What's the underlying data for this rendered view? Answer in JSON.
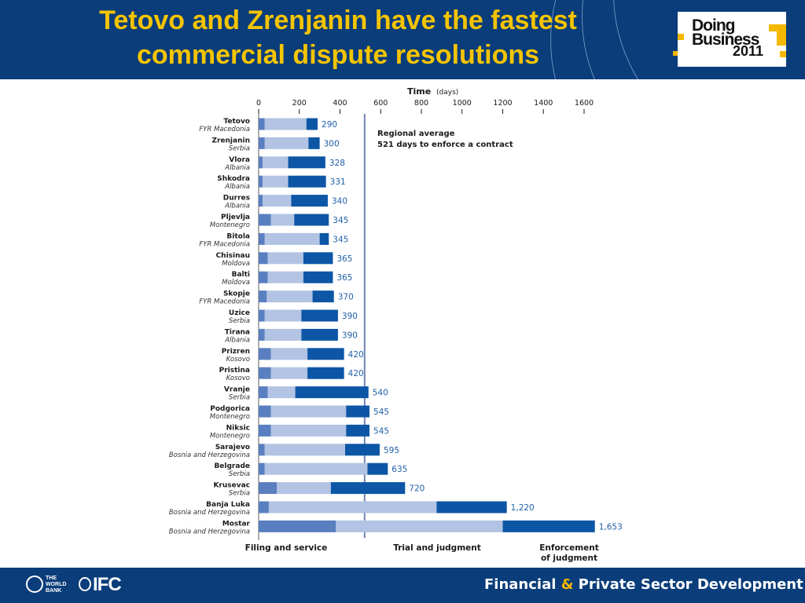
{
  "header": {
    "title_line1": "Tetovo and Zrenjanin have the fastest",
    "title_line2": "commercial dispute resolutions",
    "logo_line1": "Doing",
    "logo_line2": "Business",
    "logo_line3": "2011"
  },
  "footer": {
    "wb_line1": "THE",
    "wb_line2": "WORLD",
    "wb_line3": "BANK",
    "ifc": "IFC",
    "tagline_part1": "Financial",
    "tagline_amp": "&",
    "tagline_part2": "Private Sector Development"
  },
  "colors": {
    "header_bg": "#0a3d7a",
    "title": "#f5c400",
    "accent": "#f5b800",
    "filing": "#5a7fc0",
    "trial": "#b2c3e3",
    "enforcement": "#0d56a6",
    "value_label": "#1f5fa8"
  },
  "chart_data": {
    "type": "bar",
    "orientation": "horizontal",
    "stacked": true,
    "axis_title": "Time",
    "axis_unit": "(days)",
    "xlim": [
      0,
      1600
    ],
    "ticks": [
      0,
      200,
      400,
      600,
      800,
      1000,
      1200,
      1400,
      1600
    ],
    "reference_line": {
      "value": 521,
      "label_line1": "Regional average",
      "label_line2": "521 days to enforce a contract"
    },
    "categories": [
      {
        "city": "Tetovo",
        "country": "FYR Macedonia",
        "total": "290"
      },
      {
        "city": "Zrenjanin",
        "country": "Serbia",
        "total": "300"
      },
      {
        "city": "Vlora",
        "country": "Albania",
        "total": "328"
      },
      {
        "city": "Shkodra",
        "country": "Albania",
        "total": "331"
      },
      {
        "city": "Durres",
        "country": "Albania",
        "total": "340"
      },
      {
        "city": "Pljevlja",
        "country": "Montenegro",
        "total": "345"
      },
      {
        "city": "Bitola",
        "country": "FYR Macedonia",
        "total": "345"
      },
      {
        "city": "Chisinau",
        "country": "Moldova",
        "total": "365"
      },
      {
        "city": "Balti",
        "country": "Moldova",
        "total": "365"
      },
      {
        "city": "Skopje",
        "country": "FYR Macedonia",
        "total": "370"
      },
      {
        "city": "Uzice",
        "country": "Serbia",
        "total": "390"
      },
      {
        "city": "Tirana",
        "country": "Albania",
        "total": "390"
      },
      {
        "city": "Prizren",
        "country": "Kosovo",
        "total": "420"
      },
      {
        "city": "Pristina",
        "country": "Kosovo",
        "total": "420"
      },
      {
        "city": "Vranje",
        "country": "Serbia",
        "total": "540"
      },
      {
        "city": "Podgorica",
        "country": "Montenegro",
        "total": "545"
      },
      {
        "city": "Niksic",
        "country": "Montenegro",
        "total": "545"
      },
      {
        "city": "Sarajevo",
        "country": "Bosnia and Herzegovina",
        "total": "595"
      },
      {
        "city": "Belgrade",
        "country": "Serbia",
        "total": "635"
      },
      {
        "city": "Krusevac",
        "country": "Serbia",
        "total": "720"
      },
      {
        "city": "Banja Luka",
        "country": "Bosnia and Herzegovina",
        "total": "1,220"
      },
      {
        "city": "Mostar",
        "country": "Bosnia and Herzegovina",
        "total": "1,653"
      }
    ],
    "series": [
      {
        "name": "Filing and service",
        "values": [
          30,
          30,
          20,
          20,
          20,
          60,
          30,
          45,
          45,
          40,
          30,
          30,
          60,
          60,
          45,
          60,
          60,
          30,
          30,
          90,
          50,
          380
        ]
      },
      {
        "name": "Trial and judgment",
        "values": [
          205,
          215,
          125,
          125,
          140,
          115,
          270,
          175,
          175,
          225,
          180,
          180,
          180,
          180,
          135,
          370,
          370,
          395,
          505,
          265,
          825,
          820
        ]
      },
      {
        "name": "Enforcement of judgment",
        "values": [
          55,
          55,
          183,
          186,
          180,
          170,
          45,
          145,
          145,
          105,
          180,
          180,
          180,
          180,
          360,
          115,
          115,
          170,
          100,
          365,
          345,
          453
        ]
      }
    ],
    "legend": {
      "filing": "Filing and service",
      "trial": "Trial and judgment",
      "enforcement_line1": "Enforcement",
      "enforcement_line2": "of judgment"
    }
  }
}
